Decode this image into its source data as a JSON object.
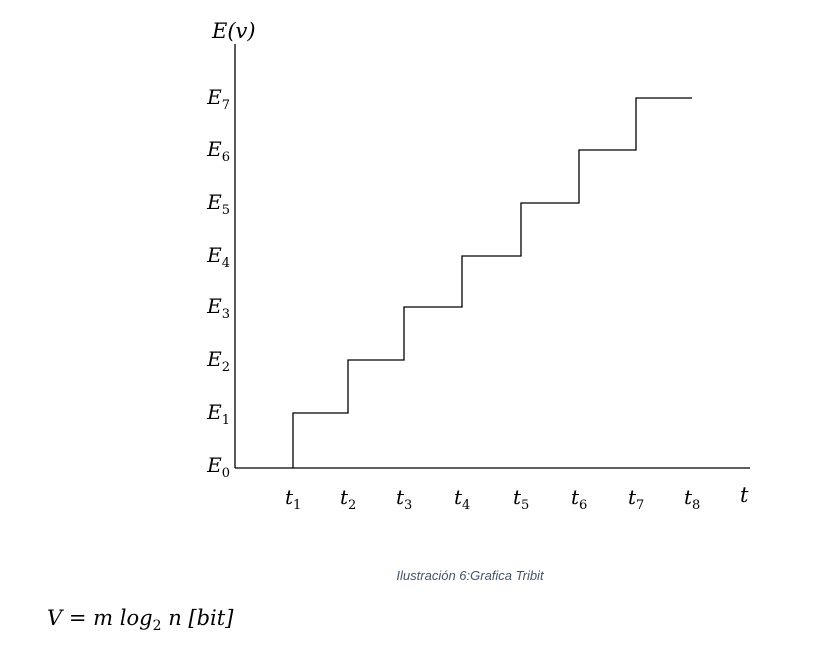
{
  "diagram": {
    "y_axis_label": "E(v)",
    "x_axis_label": "t",
    "levels": [
      {
        "base": "E",
        "sub": "0"
      },
      {
        "base": "E",
        "sub": "1"
      },
      {
        "base": "E",
        "sub": "2"
      },
      {
        "base": "E",
        "sub": "3"
      },
      {
        "base": "E",
        "sub": "4"
      },
      {
        "base": "E",
        "sub": "5"
      },
      {
        "base": "E",
        "sub": "6"
      },
      {
        "base": "E",
        "sub": "7"
      }
    ],
    "times": [
      {
        "base": "t",
        "sub": "1"
      },
      {
        "base": "t",
        "sub": "2"
      },
      {
        "base": "t",
        "sub": "3"
      },
      {
        "base": "t",
        "sub": "4"
      },
      {
        "base": "t",
        "sub": "5"
      },
      {
        "base": "t",
        "sub": "6"
      },
      {
        "base": "t",
        "sub": "7"
      },
      {
        "base": "t",
        "sub": "8"
      }
    ],
    "steps": [
      {
        "from": 1,
        "to": 2,
        "level": 1
      },
      {
        "from": 2,
        "to": 3,
        "level": 2
      },
      {
        "from": 3,
        "to": 4,
        "level": 3
      },
      {
        "from": 4,
        "to": 5,
        "level": 4
      },
      {
        "from": 5,
        "to": 6,
        "level": 5
      },
      {
        "from": 6,
        "to": 7,
        "level": 6
      },
      {
        "from": 7,
        "to": 8,
        "level": 7
      }
    ]
  },
  "caption": "Ilustración 6:Grafica Tribit",
  "formula": {
    "lhs": "V",
    "eq": "=",
    "m": "m",
    "log": "log",
    "log_sub": "2",
    "n": "n",
    "unit": "[bit]"
  }
}
